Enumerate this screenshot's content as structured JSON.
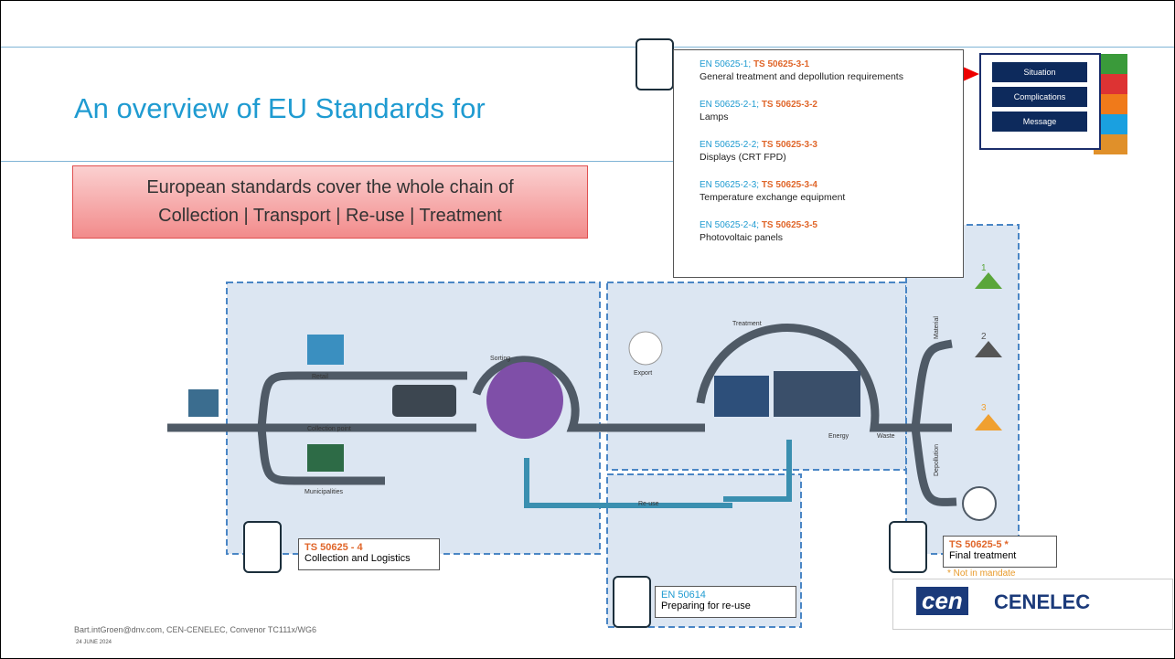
{
  "header": {
    "title": "An overview of EU Standards for"
  },
  "nav": [
    "Situation",
    "Complications",
    "Message"
  ],
  "callout": [
    "European standards cover the whole chain of",
    "Collection | Transport | Re-use | Treatment"
  ],
  "standards_list": [
    {
      "en": "EN 50625-1;",
      "ts": "TS 50625-3-1",
      "label": "General treatment and depollution requirements"
    },
    {
      "en": "EN 50625-2-1;",
      "ts": "TS 50625-3-2",
      "label": "Lamps"
    },
    {
      "en": "EN 50625-2-2;",
      "ts": "TS 50625-3-3",
      "label": "Displays (CRT FPD)"
    },
    {
      "en": "EN 50625-2-3;",
      "ts": "TS 50625-3-4",
      "label": "Temperature exchange equipment"
    },
    {
      "en": "EN 50625-2-4;",
      "ts": "TS 50625-3-5",
      "label": "Photovoltaic panels"
    }
  ],
  "diagram": {
    "labels": {
      "retail": "Retail",
      "collection_point": "Collection point",
      "municipalities": "Municipalities",
      "sorting": "Sorting",
      "export": "Export",
      "treatment": "Treatment",
      "energy": "Energy",
      "waste": "Waste",
      "reuse": "Re-use",
      "material": "Material",
      "depollution": "Depollution"
    },
    "material_steps": [
      "1",
      "2",
      "3"
    ],
    "certificates": [
      {
        "code": "TS 50625 - 4",
        "label": "Collection and Logistics"
      },
      {
        "code": "EN 50614",
        "label": "Preparing for re-use"
      },
      {
        "code": "TS 50625-5 *",
        "label": "Final treatment",
        "note": "* Not in mandate"
      }
    ]
  },
  "logo": {
    "mark": "cen",
    "name": "CENELEC"
  },
  "footer": {
    "author": "Bart.intGroen@dnv.com, CEN-CENELEC, Convenor TC111x/WG6",
    "date": "24 JUNE 2024"
  }
}
